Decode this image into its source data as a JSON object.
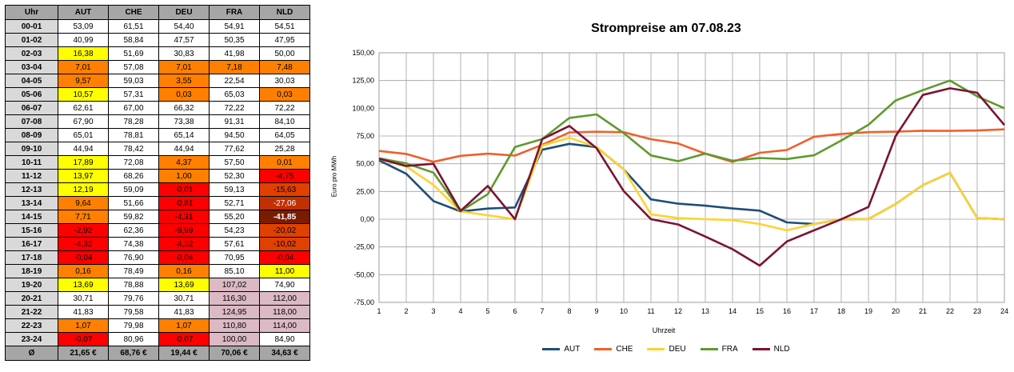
{
  "table": {
    "headers": [
      "Uhr",
      "AUT",
      "CHE",
      "DEU",
      "FRA",
      "NLD"
    ],
    "rows": [
      {
        "hour": "00-01",
        "cells": [
          {
            "v": "53,09",
            "c": ""
          },
          {
            "v": "61,51",
            "c": ""
          },
          {
            "v": "54,40",
            "c": ""
          },
          {
            "v": "54,91",
            "c": ""
          },
          {
            "v": "54,51",
            "c": ""
          }
        ]
      },
      {
        "hour": "01-02",
        "cells": [
          {
            "v": "40,99",
            "c": ""
          },
          {
            "v": "58,84",
            "c": ""
          },
          {
            "v": "47,57",
            "c": ""
          },
          {
            "v": "50,35",
            "c": ""
          },
          {
            "v": "47,95",
            "c": ""
          }
        ]
      },
      {
        "hour": "02-03",
        "cells": [
          {
            "v": "16,38",
            "c": "#ffff00"
          },
          {
            "v": "51,69",
            "c": ""
          },
          {
            "v": "30,83",
            "c": ""
          },
          {
            "v": "41,98",
            "c": ""
          },
          {
            "v": "50,00",
            "c": ""
          }
        ]
      },
      {
        "hour": "03-04",
        "cells": [
          {
            "v": "7,01",
            "c": "#ff8000"
          },
          {
            "v": "57,08",
            "c": ""
          },
          {
            "v": "7,01",
            "c": "#ff8000"
          },
          {
            "v": "7,18",
            "c": "#ff8000"
          },
          {
            "v": "7,48",
            "c": "#ff8000"
          }
        ]
      },
      {
        "hour": "04-05",
        "cells": [
          {
            "v": "9,57",
            "c": "#ff8000"
          },
          {
            "v": "59,03",
            "c": ""
          },
          {
            "v": "3,55",
            "c": "#ff8000"
          },
          {
            "v": "22,54",
            "c": ""
          },
          {
            "v": "30,03",
            "c": ""
          }
        ]
      },
      {
        "hour": "05-06",
        "cells": [
          {
            "v": "10,57",
            "c": "#ffff00"
          },
          {
            "v": "57,31",
            "c": ""
          },
          {
            "v": "0,03",
            "c": "#ff8000"
          },
          {
            "v": "65,03",
            "c": ""
          },
          {
            "v": "0,03",
            "c": "#ff8000"
          }
        ]
      },
      {
        "hour": "06-07",
        "cells": [
          {
            "v": "62,61",
            "c": ""
          },
          {
            "v": "67,00",
            "c": ""
          },
          {
            "v": "66,32",
            "c": ""
          },
          {
            "v": "72,22",
            "c": ""
          },
          {
            "v": "72,22",
            "c": ""
          }
        ]
      },
      {
        "hour": "07-08",
        "cells": [
          {
            "v": "67,90",
            "c": ""
          },
          {
            "v": "78,28",
            "c": ""
          },
          {
            "v": "73,38",
            "c": ""
          },
          {
            "v": "91,31",
            "c": ""
          },
          {
            "v": "84,10",
            "c": ""
          }
        ]
      },
      {
        "hour": "08-09",
        "cells": [
          {
            "v": "65,01",
            "c": ""
          },
          {
            "v": "78,81",
            "c": ""
          },
          {
            "v": "65,14",
            "c": ""
          },
          {
            "v": "94,50",
            "c": ""
          },
          {
            "v": "64,05",
            "c": ""
          }
        ]
      },
      {
        "hour": "09-10",
        "cells": [
          {
            "v": "44,94",
            "c": ""
          },
          {
            "v": "78,42",
            "c": ""
          },
          {
            "v": "44,94",
            "c": ""
          },
          {
            "v": "77,62",
            "c": ""
          },
          {
            "v": "25,28",
            "c": ""
          }
        ]
      },
      {
        "hour": "10-11",
        "cells": [
          {
            "v": "17,89",
            "c": "#ffff00"
          },
          {
            "v": "72,08",
            "c": ""
          },
          {
            "v": "4,37",
            "c": "#ff8000"
          },
          {
            "v": "57,50",
            "c": ""
          },
          {
            "v": "0,01",
            "c": "#ff8000"
          }
        ]
      },
      {
        "hour": "11-12",
        "cells": [
          {
            "v": "13,97",
            "c": "#ffff00"
          },
          {
            "v": "68,26",
            "c": ""
          },
          {
            "v": "1,00",
            "c": "#ff8000"
          },
          {
            "v": "52,30",
            "c": ""
          },
          {
            "v": "-4,75",
            "c": "#ff0000"
          }
        ]
      },
      {
        "hour": "12-13",
        "cells": [
          {
            "v": "12,19",
            "c": "#ffff00"
          },
          {
            "v": "59,09",
            "c": ""
          },
          {
            "v": "-0,01",
            "c": "#ff0000"
          },
          {
            "v": "59,13",
            "c": ""
          },
          {
            "v": "-15,63",
            "c": "#e04000"
          }
        ]
      },
      {
        "hour": "13-14",
        "cells": [
          {
            "v": "9,64",
            "c": "#ff8000"
          },
          {
            "v": "51,66",
            "c": ""
          },
          {
            "v": "-0,81",
            "c": "#ff0000"
          },
          {
            "v": "52,71",
            "c": ""
          },
          {
            "v": "-27,06",
            "c": "#c03000"
          }
        ]
      },
      {
        "hour": "14-15",
        "cells": [
          {
            "v": "7,71",
            "c": "#ff8000"
          },
          {
            "v": "59,82",
            "c": ""
          },
          {
            "v": "-4,31",
            "c": "#ff0000"
          },
          {
            "v": "55,20",
            "c": ""
          },
          {
            "v": "-41,85",
            "c": "#7a1c00"
          }
        ]
      },
      {
        "hour": "15-16",
        "cells": [
          {
            "v": "-2,92",
            "c": "#ff0000"
          },
          {
            "v": "62,36",
            "c": ""
          },
          {
            "v": "-9,99",
            "c": "#ff0000"
          },
          {
            "v": "54,23",
            "c": ""
          },
          {
            "v": "-20,02",
            "c": "#e04000"
          }
        ]
      },
      {
        "hour": "16-17",
        "cells": [
          {
            "v": "-4,32",
            "c": "#ff0000"
          },
          {
            "v": "74,38",
            "c": ""
          },
          {
            "v": "-4,32",
            "c": "#ff0000"
          },
          {
            "v": "57,61",
            "c": ""
          },
          {
            "v": "-10,02",
            "c": "#e04000"
          }
        ]
      },
      {
        "hour": "17-18",
        "cells": [
          {
            "v": "-0,04",
            "c": "#ff0000"
          },
          {
            "v": "76,90",
            "c": ""
          },
          {
            "v": "-0,04",
            "c": "#ff0000"
          },
          {
            "v": "70,95",
            "c": ""
          },
          {
            "v": "-0,04",
            "c": "#ff0000"
          }
        ]
      },
      {
        "hour": "18-19",
        "cells": [
          {
            "v": "0,16",
            "c": "#ff8000"
          },
          {
            "v": "78,49",
            "c": ""
          },
          {
            "v": "0,16",
            "c": "#ff8000"
          },
          {
            "v": "85,10",
            "c": ""
          },
          {
            "v": "11,00",
            "c": "#ffff00"
          }
        ]
      },
      {
        "hour": "19-20",
        "cells": [
          {
            "v": "13,69",
            "c": "#ffff00"
          },
          {
            "v": "78,88",
            "c": ""
          },
          {
            "v": "13,69",
            "c": "#ffff00"
          },
          {
            "v": "107,02",
            "c": "#dbb9c5"
          },
          {
            "v": "74,90",
            "c": ""
          }
        ]
      },
      {
        "hour": "20-21",
        "cells": [
          {
            "v": "30,71",
            "c": ""
          },
          {
            "v": "79,76",
            "c": ""
          },
          {
            "v": "30,71",
            "c": ""
          },
          {
            "v": "116,30",
            "c": "#dbb9c5"
          },
          {
            "v": "112,00",
            "c": "#dbb9c5"
          }
        ]
      },
      {
        "hour": "21-22",
        "cells": [
          {
            "v": "41,83",
            "c": ""
          },
          {
            "v": "79,58",
            "c": ""
          },
          {
            "v": "41,83",
            "c": ""
          },
          {
            "v": "124,95",
            "c": "#dbb9c5"
          },
          {
            "v": "118,00",
            "c": "#dbb9c5"
          }
        ]
      },
      {
        "hour": "22-23",
        "cells": [
          {
            "v": "1,07",
            "c": "#ff8000"
          },
          {
            "v": "79,98",
            "c": ""
          },
          {
            "v": "1,07",
            "c": "#ff8000"
          },
          {
            "v": "110,80",
            "c": "#dbb9c5"
          },
          {
            "v": "114,00",
            "c": "#dbb9c5"
          }
        ]
      },
      {
        "hour": "23-24",
        "cells": [
          {
            "v": "-0,07",
            "c": "#ff0000"
          },
          {
            "v": "80,96",
            "c": ""
          },
          {
            "v": "-0,07",
            "c": "#ff0000"
          },
          {
            "v": "100,00",
            "c": "#dbb9c5"
          },
          {
            "v": "84,90",
            "c": ""
          }
        ]
      }
    ],
    "average": {
      "label": "Ø",
      "values": [
        "21,65 €",
        "68,76 €",
        "19,44 €",
        "70,06 €",
        "34,63 €"
      ]
    }
  },
  "chart_data": {
    "type": "line",
    "title": "Strompreise am 07.08.23",
    "xlabel": "Uhrzeit",
    "ylabel": "Euro pro MWh",
    "x": [
      1,
      2,
      3,
      4,
      5,
      6,
      7,
      8,
      9,
      10,
      11,
      12,
      13,
      14,
      15,
      16,
      17,
      18,
      19,
      20,
      21,
      22,
      23,
      24
    ],
    "ylim": [
      -75,
      150
    ],
    "yticks": [
      -75,
      -50,
      -25,
      0,
      25,
      50,
      75,
      100,
      125,
      150
    ],
    "ytick_labels": [
      "-75,00",
      "-50,00",
      "-25,00",
      "0,00",
      "25,00",
      "50,00",
      "75,00",
      "100,00",
      "125,00",
      "150,00"
    ],
    "grid": true,
    "legend": "bottom",
    "series": [
      {
        "name": "AUT",
        "color": "#1f4e79",
        "values": [
          53.09,
          40.99,
          16.38,
          7.01,
          9.57,
          10.57,
          62.61,
          67.9,
          65.01,
          44.94,
          17.89,
          13.97,
          12.19,
          9.64,
          7.71,
          -2.92,
          -4.32,
          -0.04,
          0.16,
          13.69,
          30.71,
          41.83,
          1.07,
          -0.07
        ]
      },
      {
        "name": "CHE",
        "color": "#f0602a",
        "values": [
          61.51,
          58.84,
          51.69,
          57.08,
          59.03,
          57.31,
          67.0,
          78.28,
          78.81,
          78.42,
          72.08,
          68.26,
          59.09,
          51.66,
          59.82,
          62.36,
          74.38,
          76.9,
          78.49,
          78.88,
          79.76,
          79.58,
          79.98,
          80.96
        ]
      },
      {
        "name": "DEU",
        "color": "#ffd22e",
        "values": [
          54.4,
          47.57,
          30.83,
          7.01,
          3.55,
          0.03,
          66.32,
          73.38,
          65.14,
          44.94,
          4.37,
          1.0,
          -0.01,
          -0.81,
          -4.31,
          -9.99,
          -4.32,
          -0.04,
          0.16,
          13.69,
          30.71,
          41.83,
          1.07,
          -0.07
        ]
      },
      {
        "name": "FRA",
        "color": "#5e9a2e",
        "values": [
          54.91,
          50.35,
          41.98,
          7.18,
          22.54,
          65.03,
          72.22,
          91.31,
          94.5,
          77.62,
          57.5,
          52.3,
          59.13,
          52.71,
          55.2,
          54.23,
          57.61,
          70.95,
          85.1,
          107.02,
          116.3,
          124.95,
          110.8,
          100.0
        ]
      },
      {
        "name": "NLD",
        "color": "#7b1334",
        "values": [
          54.51,
          47.95,
          50.0,
          7.48,
          30.03,
          0.03,
          72.22,
          84.1,
          64.05,
          25.28,
          0.01,
          -4.75,
          -15.63,
          -27.06,
          -41.85,
          -20.02,
          -10.02,
          -0.04,
          11.0,
          74.9,
          112.0,
          118.0,
          114.0,
          84.9
        ]
      }
    ]
  }
}
